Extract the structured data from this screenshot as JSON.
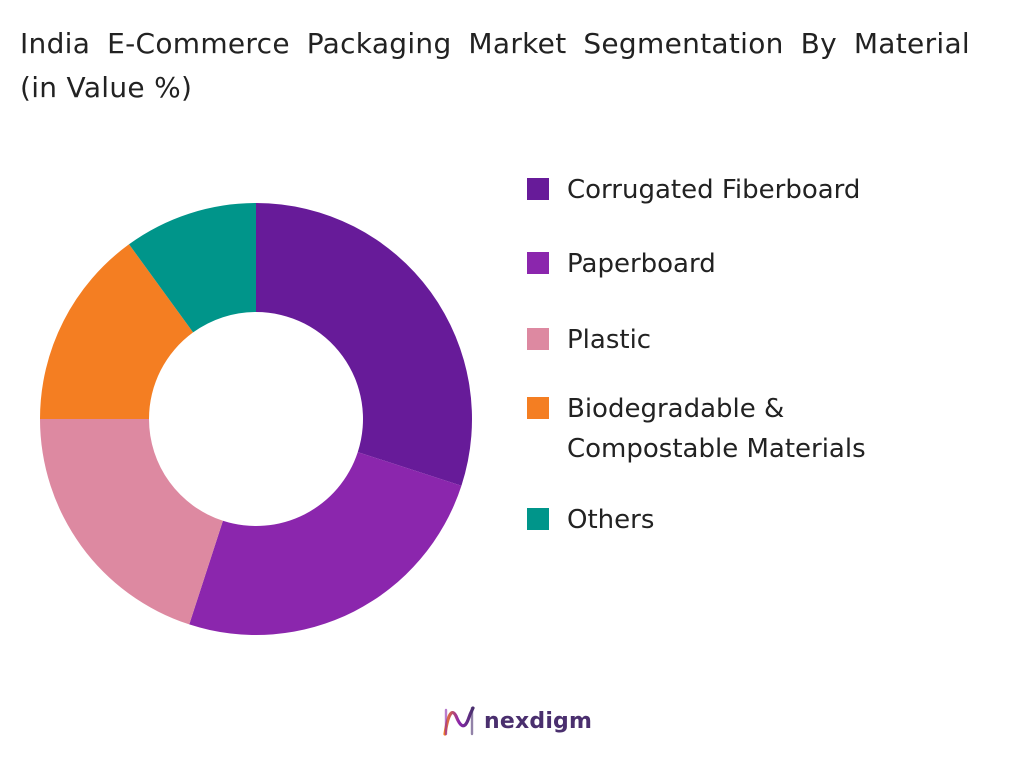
{
  "chart_data": {
    "type": "pie",
    "variant": "donut",
    "title": "India E-Commerce Packaging Market Segmentation By Material (in Value %)",
    "categories": [
      "Corrugated Fiberboard",
      "Paperboard",
      "Plastic",
      "Biodegradable & Compostable Materials",
      "Others"
    ],
    "values": [
      30,
      25,
      20,
      15,
      10
    ],
    "colors": [
      "#671b99",
      "#8b26ad",
      "#dd89a1",
      "#f47e22",
      "#00958a"
    ],
    "legend_placement": "right",
    "legend_labels": [
      [
        "Corrugated Fiberboard"
      ],
      [
        "Paperboard"
      ],
      [
        "Plastic"
      ],
      [
        "Biodegradable &",
        "Compostable Materials"
      ],
      [
        "Others"
      ]
    ]
  },
  "brand": {
    "name": "nexdigm",
    "logo_icon": "nexdigm-logo-icon",
    "accent": "#4a2f6e"
  }
}
